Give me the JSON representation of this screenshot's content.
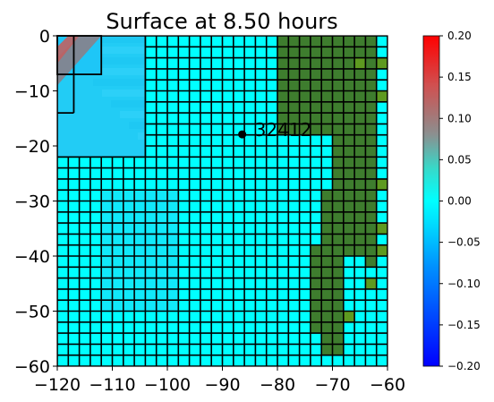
{
  "chart_data": {
    "type": "heatmap",
    "title": "Surface at 8.50 hours",
    "xlabel": "",
    "ylabel": "",
    "xlim": [
      -120,
      -60
    ],
    "ylim": [
      -60,
      0
    ],
    "x_ticks": [
      "−120",
      "−110",
      "−100",
      "−90",
      "−80",
      "−70",
      "−60"
    ],
    "x_tick_values": [
      -120,
      -110,
      -100,
      -90,
      -80,
      -70,
      -60
    ],
    "y_ticks": [
      "0",
      "−10",
      "−20",
      "−30",
      "−40",
      "−50",
      "−60"
    ],
    "y_tick_values": [
      0,
      -10,
      -20,
      -30,
      -40,
      -50,
      -60
    ],
    "colorbar": {
      "min": -0.2,
      "max": 0.2,
      "tick_values": [
        0.2,
        0.15,
        0.1,
        0.05,
        0.0,
        -0.05,
        -0.1,
        -0.15,
        -0.2
      ],
      "tick_labels": [
        "0.20",
        "0.15",
        "0.10",
        "0.05",
        "0.00",
        "−0.05",
        "−0.10",
        "−0.15",
        "−0.20"
      ]
    },
    "station": {
      "label": "32412",
      "lon": -86.4,
      "lat": -17.9
    },
    "grid_cell_size_fine": 2,
    "fine_region": {
      "x": [
        -120,
        -60
      ],
      "y": [
        -60,
        0
      ]
    },
    "excluded_regions": [
      {
        "x": [
          -120,
          -104
        ],
        "y": [
          -22,
          0
        ]
      }
    ],
    "coarse_patches": [
      {
        "x": [
          -118,
          -112
        ],
        "y": [
          -7,
          -1
        ],
        "line": "dark"
      },
      {
        "x": [
          -120,
          -118
        ],
        "y": [
          -13,
          -7
        ],
        "line": "dark"
      },
      {
        "x": [
          -120,
          -117
        ],
        "y": [
          -7,
          -1
        ],
        "line": "dark"
      },
      {
        "x": [
          -117,
          -112
        ],
        "y": [
          -7,
          0
        ],
        "line": "dark"
      }
    ],
    "land": {
      "color": "#3e7d2e",
      "color_light": "#5e9a20",
      "columns": [
        {
          "x0": -80,
          "x1": -66,
          "y_min": -58,
          "y_max": 0
        },
        {
          "x0": -66,
          "x1": -62,
          "y_min": -42,
          "y_max": 0
        }
      ]
    },
    "ocean_color": "#00ffff"
  }
}
